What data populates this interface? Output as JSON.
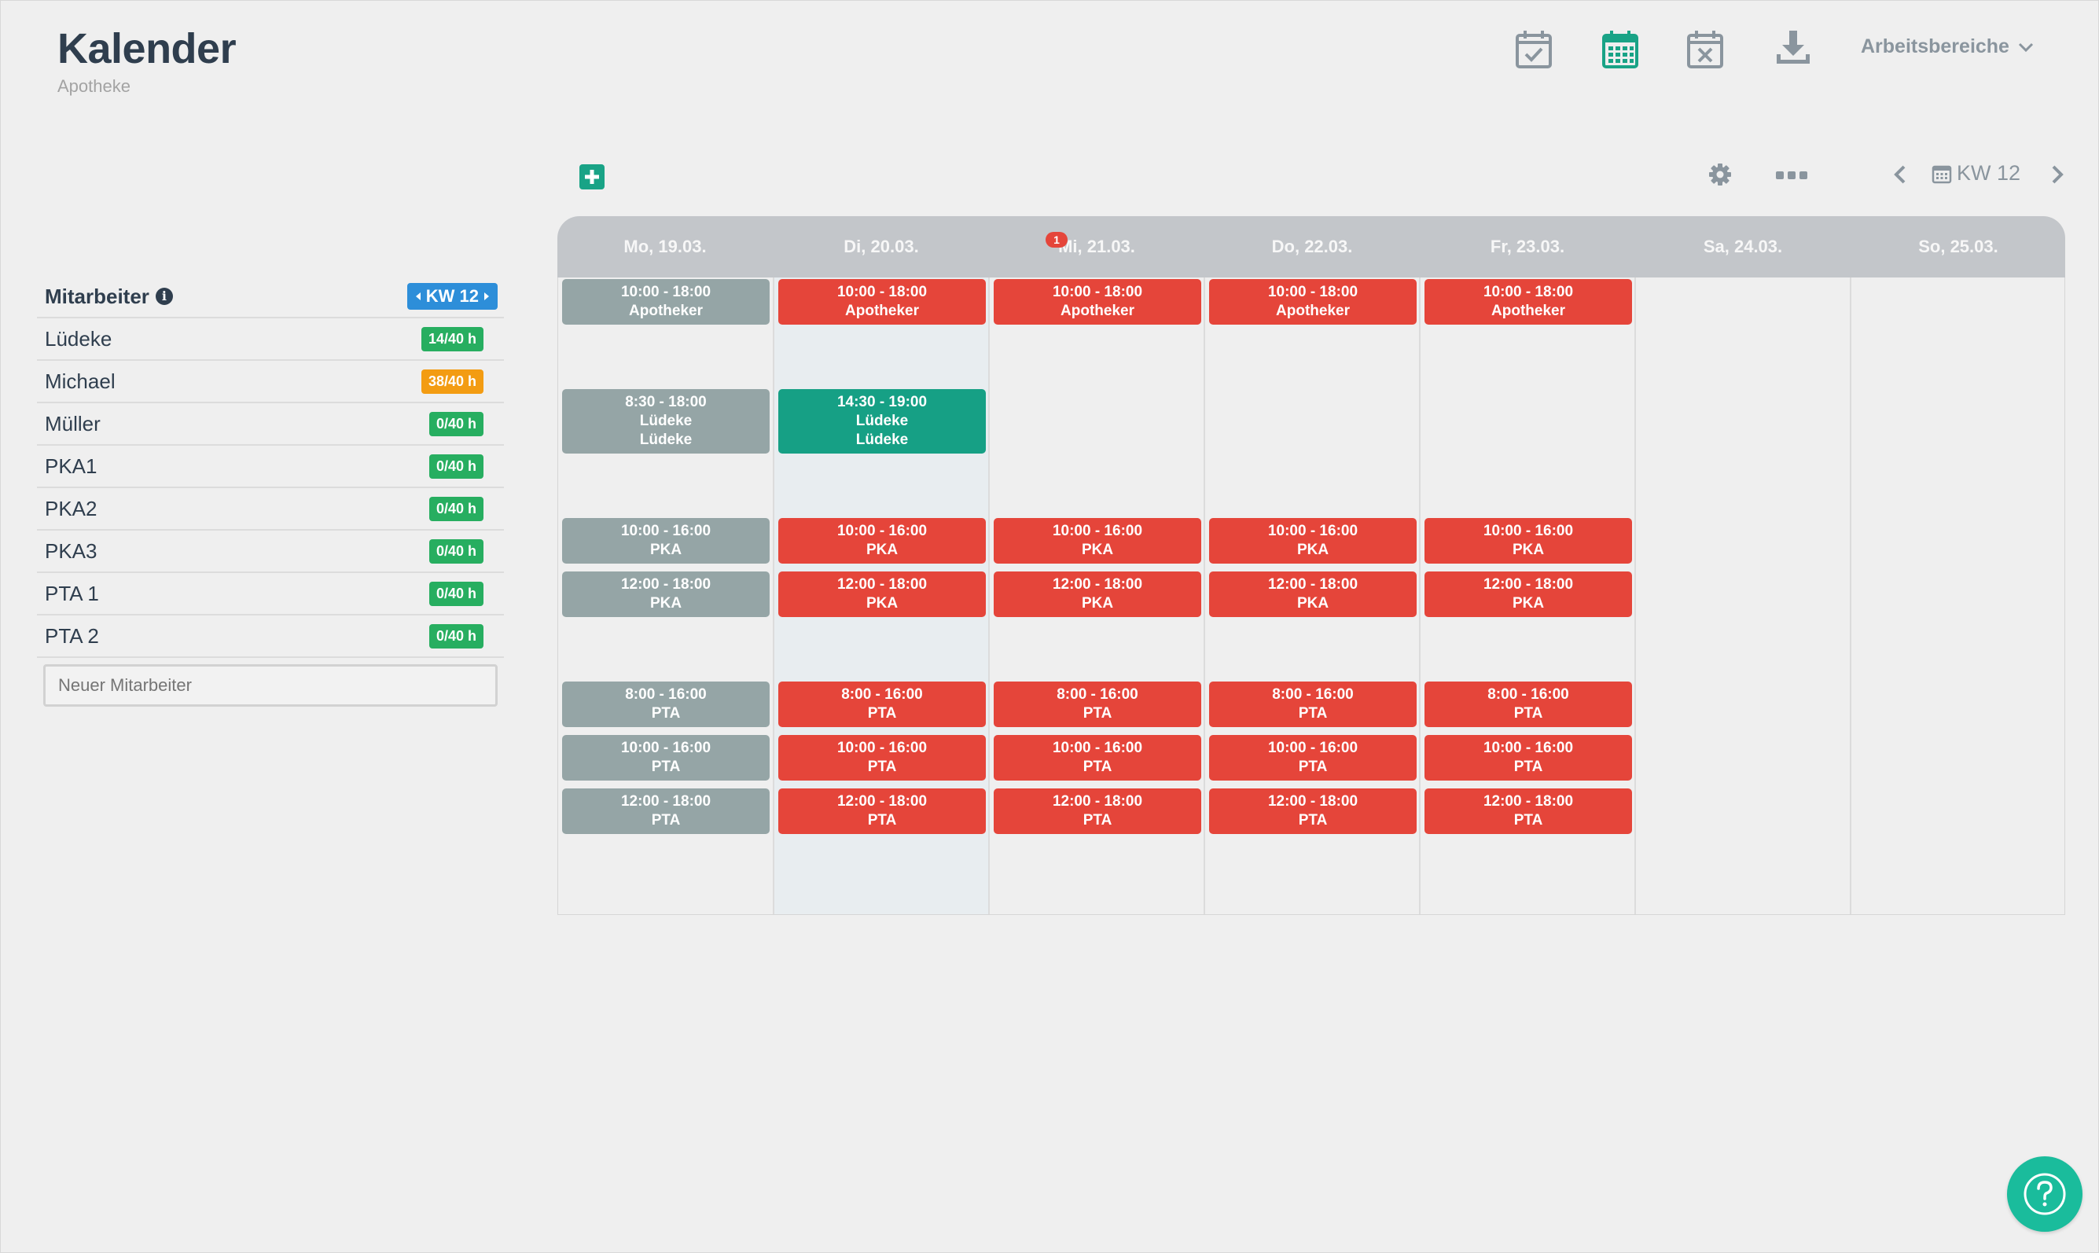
{
  "header": {
    "title": "Kalender",
    "subtitle": "Apotheke",
    "workspaces": "Arbeitsbereiche"
  },
  "toolbar": {
    "week": "KW 12"
  },
  "sidebar": {
    "heading": "Mitarbeiter",
    "week_badge": "KW 12",
    "employees": [
      {
        "name": "Lüdeke",
        "hours": "14/40 h",
        "color": "#27ae60"
      },
      {
        "name": "Michael",
        "hours": "38/40 h",
        "color": "#f39c12"
      },
      {
        "name": "Müller",
        "hours": "0/40 h",
        "color": "#27ae60"
      },
      {
        "name": "PKA1",
        "hours": "0/40 h",
        "color": "#27ae60"
      },
      {
        "name": "PKA2",
        "hours": "0/40 h",
        "color": "#27ae60"
      },
      {
        "name": "PKA3",
        "hours": "0/40 h",
        "color": "#27ae60"
      },
      {
        "name": "PTA 1",
        "hours": "0/40 h",
        "color": "#27ae60"
      },
      {
        "name": "PTA 2",
        "hours": "0/40 h",
        "color": "#27ae60"
      }
    ],
    "new_employee_placeholder": "Neuer Mitarbeiter"
  },
  "calendar": {
    "days": [
      "Mo, 19.03.",
      "Di, 20.03.",
      "Mi, 21.03.",
      "Do, 22.03.",
      "Fr, 23.03.",
      "Sa, 24.03.",
      "So, 25.03."
    ],
    "notification": "1",
    "events": [
      {
        "day": 0,
        "slot": 0,
        "time": "10:00 - 18:00",
        "role": "Apotheker",
        "color": "gray"
      },
      {
        "day": 1,
        "slot": 0,
        "time": "10:00 - 18:00",
        "role": "Apotheker",
        "color": "red"
      },
      {
        "day": 2,
        "slot": 0,
        "time": "10:00 - 18:00",
        "role": "Apotheker",
        "color": "red"
      },
      {
        "day": 3,
        "slot": 0,
        "time": "10:00 - 18:00",
        "role": "Apotheker",
        "color": "red"
      },
      {
        "day": 4,
        "slot": 0,
        "time": "10:00 - 18:00",
        "role": "Apotheker",
        "color": "red"
      },
      {
        "day": 0,
        "slot": 1,
        "time": "8:30 - 18:00",
        "role": "Lüdeke",
        "person": "Lüdeke",
        "color": "gray"
      },
      {
        "day": 1,
        "slot": 1,
        "time": "14:30 - 19:00",
        "role": "Lüdeke",
        "person": "Lüdeke",
        "color": "green"
      },
      {
        "day": 0,
        "slot": 2,
        "time": "10:00 - 16:00",
        "role": "PKA",
        "color": "gray"
      },
      {
        "day": 1,
        "slot": 2,
        "time": "10:00 - 16:00",
        "role": "PKA",
        "color": "red"
      },
      {
        "day": 2,
        "slot": 2,
        "time": "10:00 - 16:00",
        "role": "PKA",
        "color": "red"
      },
      {
        "day": 3,
        "slot": 2,
        "time": "10:00 - 16:00",
        "role": "PKA",
        "color": "red"
      },
      {
        "day": 4,
        "slot": 2,
        "time": "10:00 - 16:00",
        "role": "PKA",
        "color": "red"
      },
      {
        "day": 0,
        "slot": 3,
        "time": "12:00 - 18:00",
        "role": "PKA",
        "color": "gray"
      },
      {
        "day": 1,
        "slot": 3,
        "time": "12:00 - 18:00",
        "role": "PKA",
        "color": "red"
      },
      {
        "day": 2,
        "slot": 3,
        "time": "12:00 - 18:00",
        "role": "PKA",
        "color": "red"
      },
      {
        "day": 3,
        "slot": 3,
        "time": "12:00 - 18:00",
        "role": "PKA",
        "color": "red"
      },
      {
        "day": 4,
        "slot": 3,
        "time": "12:00 - 18:00",
        "role": "PKA",
        "color": "red"
      },
      {
        "day": 0,
        "slot": 4,
        "time": "8:00 - 16:00",
        "role": "PTA",
        "color": "gray"
      },
      {
        "day": 1,
        "slot": 4,
        "time": "8:00 - 16:00",
        "role": "PTA",
        "color": "red"
      },
      {
        "day": 2,
        "slot": 4,
        "time": "8:00 - 16:00",
        "role": "PTA",
        "color": "red"
      },
      {
        "day": 3,
        "slot": 4,
        "time": "8:00 - 16:00",
        "role": "PTA",
        "color": "red"
      },
      {
        "day": 4,
        "slot": 4,
        "time": "8:00 - 16:00",
        "role": "PTA",
        "color": "red"
      },
      {
        "day": 0,
        "slot": 5,
        "time": "10:00 - 16:00",
        "role": "PTA",
        "color": "gray"
      },
      {
        "day": 1,
        "slot": 5,
        "time": "10:00 - 16:00",
        "role": "PTA",
        "color": "red"
      },
      {
        "day": 2,
        "slot": 5,
        "time": "10:00 - 16:00",
        "role": "PTA",
        "color": "red"
      },
      {
        "day": 3,
        "slot": 5,
        "time": "10:00 - 16:00",
        "role": "PTA",
        "color": "red"
      },
      {
        "day": 4,
        "slot": 5,
        "time": "10:00 - 16:00",
        "role": "PTA",
        "color": "red"
      },
      {
        "day": 0,
        "slot": 6,
        "time": "12:00 - 18:00",
        "role": "PTA",
        "color": "gray"
      },
      {
        "day": 1,
        "slot": 6,
        "time": "12:00 - 18:00",
        "role": "PTA",
        "color": "red"
      },
      {
        "day": 2,
        "slot": 6,
        "time": "12:00 - 18:00",
        "role": "PTA",
        "color": "red"
      },
      {
        "day": 3,
        "slot": 6,
        "time": "12:00 - 18:00",
        "role": "PTA",
        "color": "red"
      },
      {
        "day": 4,
        "slot": 6,
        "time": "12:00 - 18:00",
        "role": "PTA",
        "color": "red"
      }
    ]
  },
  "icons": [
    "calendar-check-icon",
    "calendar-icon",
    "calendar-x-icon",
    "download-icon",
    "plus-icon",
    "gear-icon",
    "more-icon",
    "chevron-left-icon",
    "chevron-right-icon",
    "info-icon",
    "help-icon"
  ],
  "colors": {
    "accent": "#19a386",
    "danger": "#e5453a",
    "muted": "#95a5a6",
    "primary": "#2d8ed9",
    "warning": "#f39c12"
  }
}
